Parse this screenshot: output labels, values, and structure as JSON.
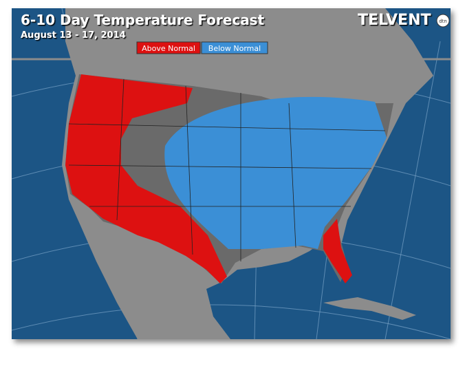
{
  "header": {
    "title": "6-10 Day Temperature Forecast",
    "subtitle": "August 13 - 17, 2014",
    "logo": "TELVENT",
    "logo_badge": "dtn"
  },
  "legend": [
    {
      "label": "Above Normal",
      "color": "#dd1111"
    },
    {
      "label": "Below Normal",
      "color": "#3b8fd6"
    }
  ]
}
